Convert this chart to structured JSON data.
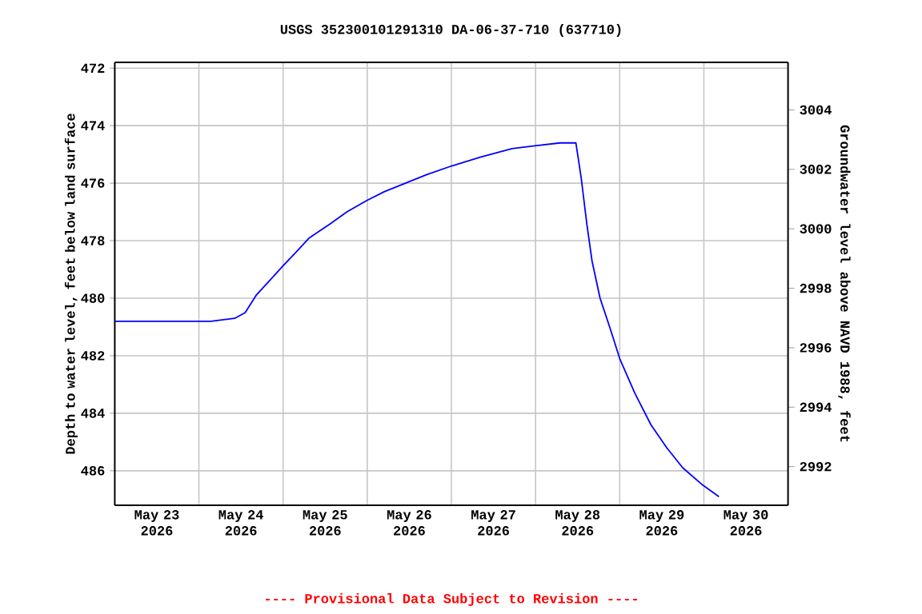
{
  "chart_data": {
    "type": "line",
    "title": "USGS 352300101291310 DA-06-37-710  (637710)",
    "ylabel": "Depth to water level, feet below land surface",
    "y2label": "Groundwater level above NAVD 1988, feet",
    "annotations": [
      "---- Provisional Data Subject to Revision ----"
    ],
    "x": [
      "2026-05-23T00:00",
      "2026-05-24T03:24",
      "2026-05-24T10:12",
      "2026-05-24T13:12",
      "2026-05-24T16:18",
      "2026-05-24T20:48",
      "2026-05-24T23:48",
      "2026-05-25T03:42",
      "2026-05-25T07:30",
      "2026-05-25T13:36",
      "2026-05-25T18:12",
      "2026-05-25T23:54",
      "2026-05-26T04:48",
      "2026-05-26T10:54",
      "2026-05-26T17:00",
      "2026-05-27T00:06",
      "2026-05-27T08:12",
      "2026-05-27T17:18",
      "2026-05-27T23:48",
      "2026-05-28T07:00",
      "2026-05-28T11:30",
      "2026-05-28T13:00",
      "2026-05-28T14:36",
      "2026-05-28T16:06",
      "2026-05-28T18:24",
      "2026-05-28T21:24",
      "2026-05-29T00:00",
      "2026-05-29T04:18",
      "2026-05-29T08:54",
      "2026-05-29T13:24",
      "2026-05-29T18:00",
      "2026-05-29T23:42",
      "2026-05-30T04:18"
    ],
    "series": [
      {
        "color": "#0000ff",
        "values": [
          480.8,
          480.8,
          480.7,
          480.5,
          479.9,
          479.3,
          478.9,
          478.4,
          477.9,
          477.4,
          477.0,
          476.6,
          476.3,
          476.0,
          475.7,
          475.4,
          475.1,
          474.8,
          474.7,
          474.6,
          474.6,
          475.8,
          477.4,
          478.7,
          480.0,
          481.1,
          482.1,
          483.3,
          484.4,
          485.2,
          485.9,
          486.5,
          486.9
        ]
      }
    ],
    "xlim": [
      "2026-05-23T00:00",
      "2026-05-31T00:00"
    ],
    "xticks": [
      {
        "value": "2026-05-23T12:00",
        "label": "May 23 2026"
      },
      {
        "value": "2026-05-24T12:00",
        "label": "May 24 2026"
      },
      {
        "value": "2026-05-25T12:00",
        "label": "May 25 2026"
      },
      {
        "value": "2026-05-26T12:00",
        "label": "May 26 2026"
      },
      {
        "value": "2026-05-27T12:00",
        "label": "May 27 2026"
      },
      {
        "value": "2026-05-28T12:00",
        "label": "May 28 2026"
      },
      {
        "value": "2026-05-29T12:00",
        "label": "May 29 2026"
      },
      {
        "value": "2026-05-30T12:00",
        "label": "May 30 2026"
      },
      {
        "value": "2026-05-24T00:00",
        "label": null
      },
      {
        "value": "2026-05-25T00:00",
        "label": null
      },
      {
        "value": "2026-05-26T00:00",
        "label": null
      },
      {
        "value": "2026-05-27T00:00",
        "label": null
      },
      {
        "value": "2026-05-28T00:00",
        "label": null
      },
      {
        "value": "2026-05-29T00:00",
        "label": null
      },
      {
        "value": "2026-05-30T00:00",
        "label": null
      }
    ],
    "ylim": [
      487.2,
      471.8
    ],
    "yticks": [
      472,
      474,
      476,
      478,
      480,
      482,
      484,
      486
    ],
    "y2lim": [
      2990.7,
      3005.6
    ],
    "y2ticks": [
      2992,
      2994,
      2996,
      2998,
      3000,
      3002,
      3004
    ],
    "grid": true,
    "marker": "none",
    "line_style": "solid"
  }
}
